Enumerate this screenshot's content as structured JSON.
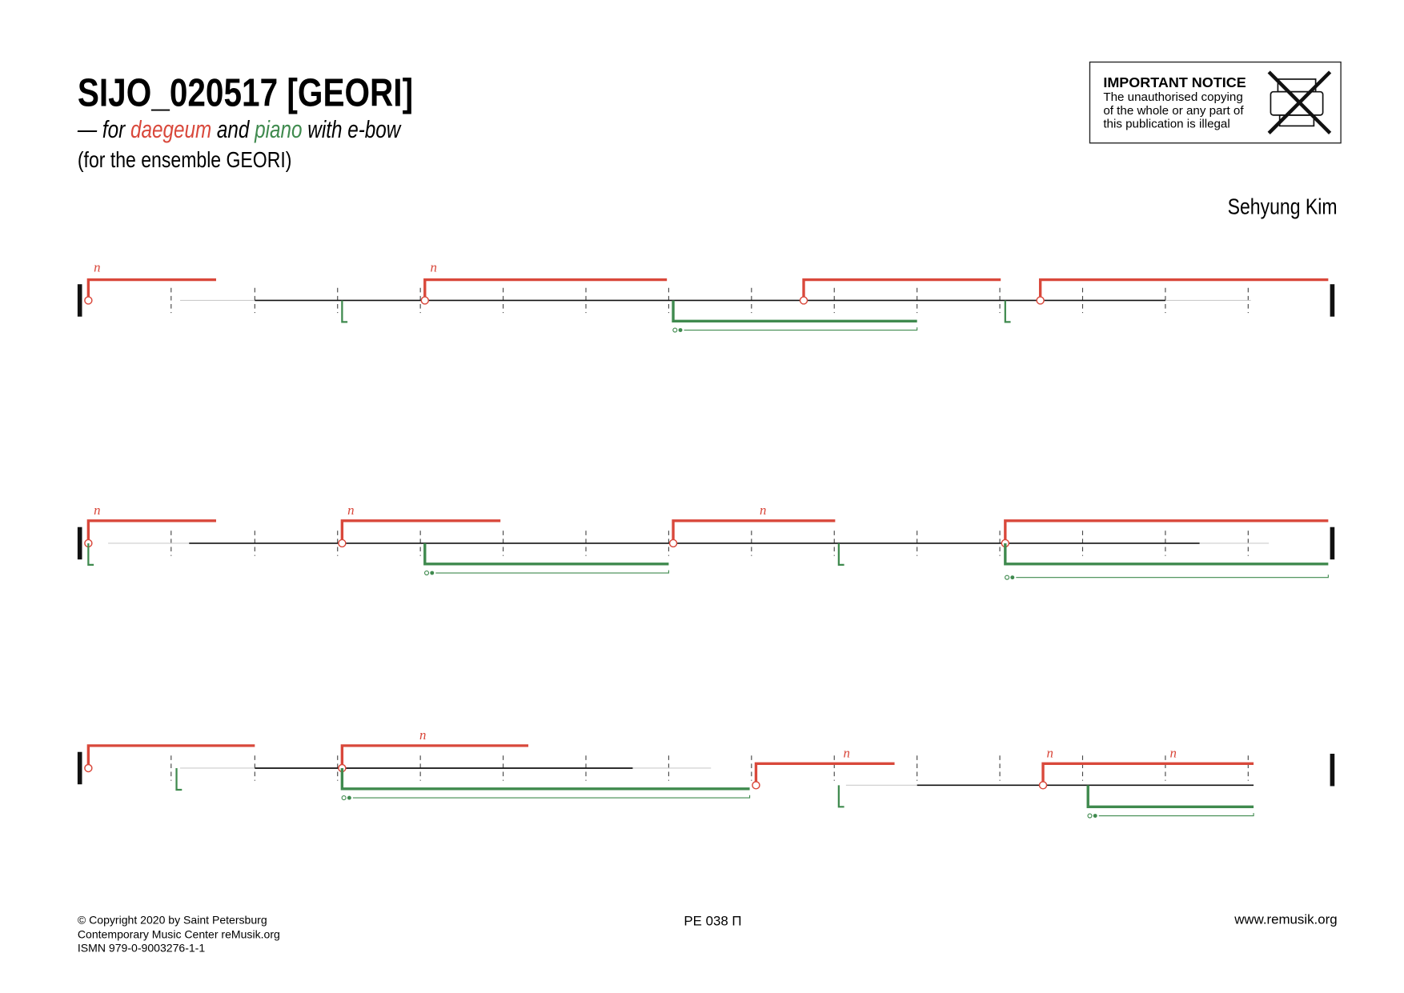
{
  "header": {
    "title": "SIJO_020517 [GEORI]",
    "subtitle": {
      "prefix": "— for",
      "instrument1": "daegeum",
      "and": "and",
      "instrument2": "piano",
      "suffix": "with e-bow"
    },
    "dedication": "(for the ensemble GEORI)",
    "composer": "Sehyung Kim"
  },
  "notice": {
    "heading": "IMPORTANT NOTICE",
    "lines": [
      "The unauthorised copying",
      "of the whole or any part of",
      "this publication is illegal"
    ]
  },
  "score": {
    "natural": "n"
  },
  "footer": {
    "copyright": [
      "© Copyright 2020 by Saint Petersburg",
      "Contemporary Music Center reMusik.org",
      "ISMN 979-0-9003276-1-1"
    ],
    "catalog": "PE 038 П",
    "website": "www.remusik.org"
  }
}
